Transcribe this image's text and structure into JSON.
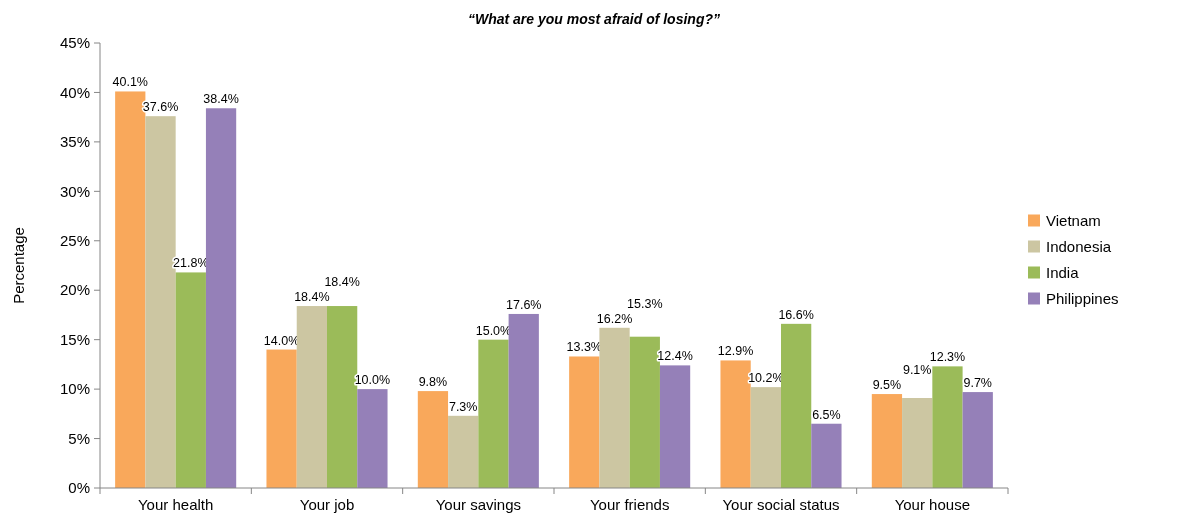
{
  "chart_data": {
    "type": "bar",
    "title": "“What are you most afraid of losing?”",
    "ylabel": "Percentage",
    "categories": [
      "Your health",
      "Your job",
      "Your savings",
      "Your friends",
      "Your social status",
      "Your house"
    ],
    "series": [
      {
        "name": "Vietnam",
        "color": "#f9a85b",
        "values": [
          40.1,
          14.0,
          9.8,
          13.3,
          12.9,
          9.5
        ],
        "value_labels": [
          "40.1%",
          "14.0%",
          "9.8%",
          "13.3%",
          "12.9%",
          "9.5%"
        ]
      },
      {
        "name": "Indonesia",
        "color": "#ccc6a2",
        "values": [
          37.6,
          18.4,
          7.3,
          16.2,
          10.2,
          9.1
        ],
        "value_labels": [
          "37.6%",
          "18.4%",
          "7.3%",
          "16.2%",
          "10.2%",
          "9.1%"
        ]
      },
      {
        "name": "India",
        "color": "#9bbb59",
        "values": [
          21.8,
          18.4,
          15.0,
          15.3,
          16.6,
          12.3
        ],
        "value_labels": [
          "21.8%",
          "18.4%",
          "15.0%",
          "15.3%",
          "16.6%",
          "12.3%"
        ]
      },
      {
        "name": "Philippines",
        "color": "#9580b8",
        "values": [
          38.4,
          10.0,
          17.6,
          12.4,
          6.5,
          9.7
        ],
        "value_labels": [
          "38.4%",
          "10.0%",
          "17.6%",
          "12.4%",
          "6.5%",
          "9.7%"
        ]
      }
    ],
    "ylim": [
      0,
      45
    ],
    "yticks": [
      {
        "value": 0,
        "label": "0%"
      },
      {
        "value": 5,
        "label": "5%"
      },
      {
        "value": 10,
        "label": "10%"
      },
      {
        "value": 15,
        "label": "15%"
      },
      {
        "value": 20,
        "label": "20%"
      },
      {
        "value": 25,
        "label": "25%"
      },
      {
        "value": 30,
        "label": "30%"
      },
      {
        "value": 35,
        "label": "35%"
      },
      {
        "value": 40,
        "label": "40%"
      },
      {
        "value": 45,
        "label": "45%"
      }
    ],
    "legend": "right",
    "grid": false
  }
}
